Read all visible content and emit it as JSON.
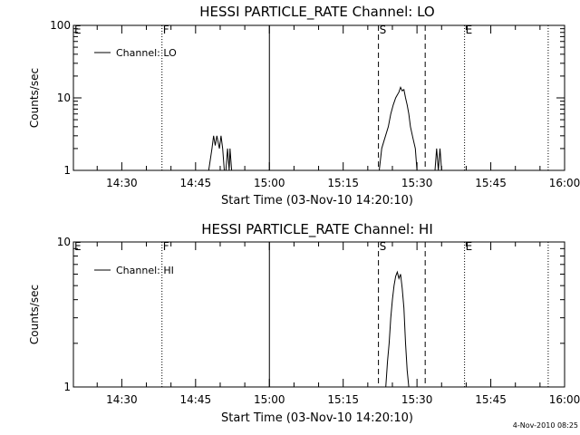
{
  "chart_data": [
    {
      "type": "line",
      "title": "HESSI PARTICLE_RATE Channel: LO",
      "xlabel": "Start Time (03-Nov-10 14:20:10)",
      "ylabel": "Counts/sec",
      "y_scale": "log",
      "ylim": [
        1,
        100
      ],
      "y_ticks": [
        "1",
        "10",
        "100"
      ],
      "xlim": [
        "14:20:10",
        "16:00:00"
      ],
      "x_ticks": [
        {
          "t": "14:30:00",
          "label": "14:30"
        },
        {
          "t": "14:45:00",
          "label": "14:45"
        },
        {
          "t": "15:00:00",
          "label": "15:00"
        },
        {
          "t": "15:15:00",
          "label": "15:15"
        },
        {
          "t": "15:30:00",
          "label": "15:30"
        },
        {
          "t": "15:45:00",
          "label": "15:45"
        },
        {
          "t": "16:00:00",
          "label": "16:00"
        }
      ],
      "legend": {
        "position": "top-left",
        "entries": [
          "Channel: LO"
        ]
      },
      "markers": [
        {
          "label": "E",
          "t": "14:20:10",
          "style": "solid"
        },
        {
          "label": "F",
          "t": "14:38:10",
          "style": "dotted"
        },
        {
          "label": "",
          "t": "15:00:00",
          "style": "solid"
        },
        {
          "label": "S",
          "t": "15:22:10",
          "style": "dashed"
        },
        {
          "label": "",
          "t": "15:31:40",
          "style": "dashed"
        },
        {
          "label": "E",
          "t": "15:39:40",
          "style": "dotted"
        },
        {
          "label": "",
          "t": "15:56:40",
          "style": "dotted"
        }
      ],
      "series": [
        {
          "name": "Channel: LO",
          "segments": [
            [
              [
                "14:47:40",
                1
              ],
              [
                "14:48:20",
                2
              ],
              [
                "14:48:40",
                3
              ],
              [
                "14:49:00",
                2.2
              ],
              [
                "14:49:20",
                3
              ],
              [
                "14:49:50",
                2
              ],
              [
                "14:50:10",
                3
              ],
              [
                "14:50:30",
                2
              ],
              [
                "14:50:50",
                1
              ]
            ],
            [
              [
                "14:51:10",
                1
              ],
              [
                "14:51:30",
                2
              ],
              [
                "14:51:50",
                1
              ],
              [
                "14:52:00",
                2
              ],
              [
                "14:52:20",
                1
              ]
            ],
            [
              [
                "15:22:20",
                1
              ],
              [
                "15:22:50",
                2
              ],
              [
                "15:23:20",
                2.6
              ],
              [
                "15:24:10",
                4
              ],
              [
                "15:24:40",
                6
              ],
              [
                "15:25:10",
                8
              ],
              [
                "15:25:40",
                10
              ],
              [
                "15:26:00",
                11
              ],
              [
                "15:26:20",
                12
              ],
              [
                "15:26:40",
                14
              ],
              [
                "15:27:00",
                12.5
              ],
              [
                "15:27:20",
                13
              ],
              [
                "15:27:40",
                10
              ],
              [
                "15:28:00",
                8
              ],
              [
                "15:28:20",
                6
              ],
              [
                "15:28:40",
                4
              ],
              [
                "15:29:10",
                2.8
              ],
              [
                "15:29:40",
                2
              ],
              [
                "15:30:00",
                1
              ]
            ],
            [
              [
                "15:33:40",
                1
              ],
              [
                "15:34:00",
                2
              ],
              [
                "15:34:20",
                1
              ],
              [
                "15:34:40",
                2
              ],
              [
                "15:35:00",
                1
              ]
            ]
          ]
        }
      ]
    },
    {
      "type": "line",
      "title": "HESSI PARTICLE_RATE Channel: HI",
      "xlabel": "Start Time (03-Nov-10 14:20:10)",
      "ylabel": "Counts/sec",
      "y_scale": "log",
      "ylim": [
        1,
        10
      ],
      "y_ticks": [
        "1",
        "10"
      ],
      "xlim": [
        "14:20:10",
        "16:00:00"
      ],
      "x_ticks": [
        {
          "t": "14:30:00",
          "label": "14:30"
        },
        {
          "t": "14:45:00",
          "label": "14:45"
        },
        {
          "t": "15:00:00",
          "label": "15:00"
        },
        {
          "t": "15:15:00",
          "label": "15:15"
        },
        {
          "t": "15:30:00",
          "label": "15:30"
        },
        {
          "t": "15:45:00",
          "label": "15:45"
        },
        {
          "t": "16:00:00",
          "label": "16:00"
        }
      ],
      "legend": {
        "position": "top-left",
        "entries": [
          "Channel: HI"
        ]
      },
      "markers": [
        {
          "label": "E",
          "t": "14:20:10",
          "style": "solid"
        },
        {
          "label": "F",
          "t": "14:38:10",
          "style": "dotted"
        },
        {
          "label": "",
          "t": "15:00:00",
          "style": "solid"
        },
        {
          "label": "S",
          "t": "15:22:10",
          "style": "dashed"
        },
        {
          "label": "",
          "t": "15:31:40",
          "style": "dashed"
        },
        {
          "label": "E",
          "t": "15:39:40",
          "style": "dotted"
        },
        {
          "label": "",
          "t": "15:56:40",
          "style": "dotted"
        }
      ],
      "series": [
        {
          "name": "Channel: HI",
          "segments": [
            [
              [
                "15:23:40",
                1
              ],
              [
                "15:24:00",
                1.5
              ],
              [
                "15:24:20",
                2
              ],
              [
                "15:24:40",
                3
              ],
              [
                "15:25:00",
                4
              ],
              [
                "15:25:20",
                5
              ],
              [
                "15:25:40",
                5.8
              ],
              [
                "15:26:00",
                6.2
              ],
              [
                "15:26:20",
                5.6
              ],
              [
                "15:26:40",
                6
              ],
              [
                "15:27:00",
                4.8
              ],
              [
                "15:27:20",
                3.5
              ],
              [
                "15:27:40",
                2
              ],
              [
                "15:28:00",
                1.3
              ],
              [
                "15:28:20",
                1
              ]
            ]
          ]
        }
      ]
    }
  ],
  "footer": {
    "stamp": "4-Nov-2010 08:25"
  }
}
